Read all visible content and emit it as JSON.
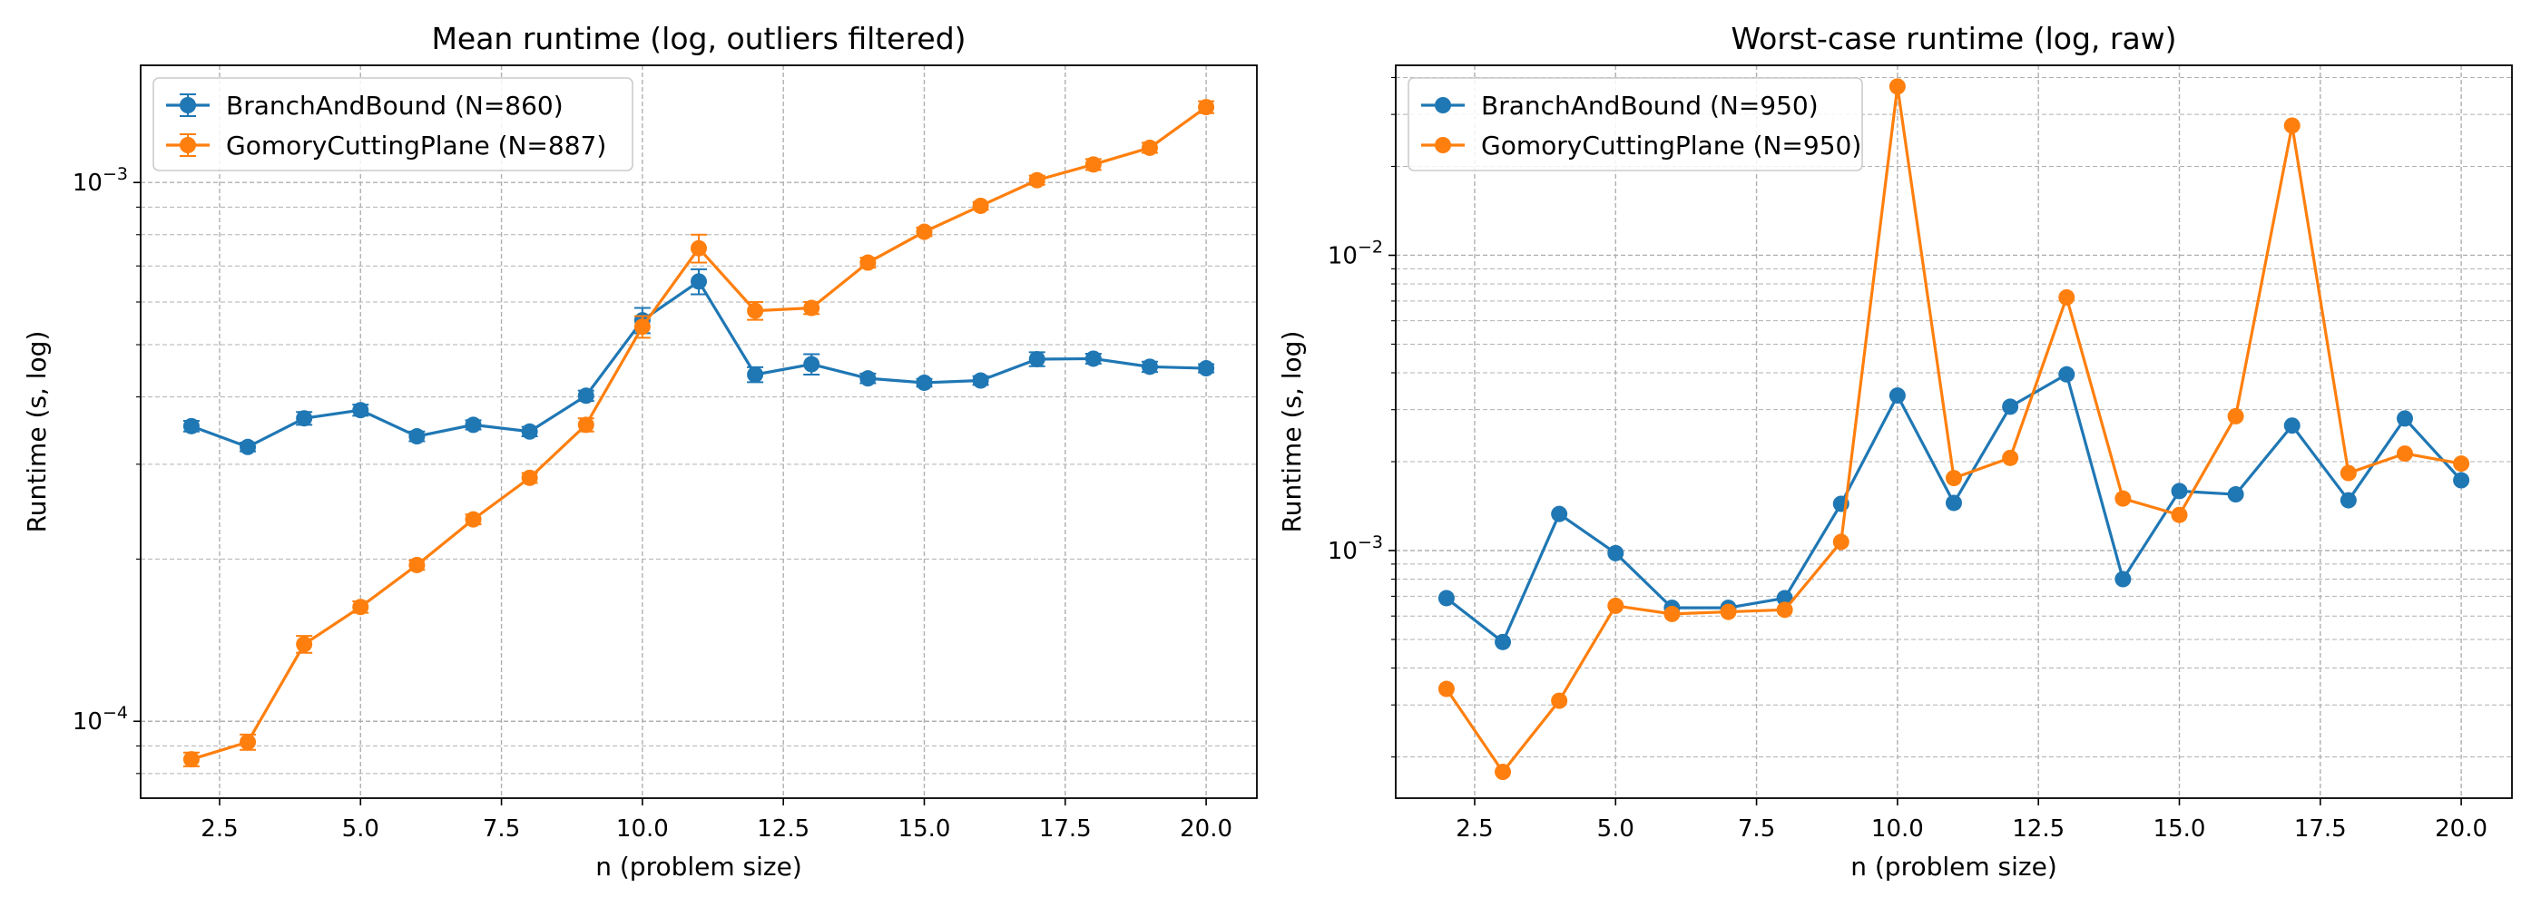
{
  "colors": {
    "series_a": "#1f77b4",
    "series_b": "#ff7f0e"
  },
  "chart_data": [
    {
      "type": "line",
      "title": "Mean runtime (log, outliers filtered)",
      "xlabel": "n (problem size)",
      "ylabel": "Runtime (s, log)",
      "xlim": [
        1.1,
        20.9
      ],
      "ylim": [
        7.2e-05,
        0.00165
      ],
      "yscale": "log",
      "xticks": [
        2.5,
        5.0,
        7.5,
        10.0,
        12.5,
        15.0,
        17.5,
        20.0
      ],
      "xtick_labels": [
        "2.5",
        "5.0",
        "7.5",
        "10.0",
        "12.5",
        "15.0",
        "17.5",
        "20.0"
      ],
      "yticks": [
        0.0001,
        0.001
      ],
      "ytick_base": [
        "10",
        "10"
      ],
      "ytick_exp": [
        "−4",
        "−3"
      ],
      "grid": true,
      "legend_position": "top-left",
      "x": [
        2,
        3,
        4,
        5,
        6,
        7,
        8,
        9,
        10,
        11,
        12,
        13,
        14,
        15,
        16,
        17,
        18,
        19,
        20
      ],
      "series": [
        {
          "name": "BranchAndBound (N=860)",
          "color": "#1f77b4",
          "error_bars": true,
          "values": [
            0.000353,
            0.000323,
            0.000365,
            0.000378,
            0.000338,
            0.000355,
            0.000345,
            0.000402,
            0.000555,
            0.000655,
            0.00044,
            0.00046,
            0.000433,
            0.000425,
            0.000429,
            0.00047,
            0.000471,
            0.000455,
            0.000452
          ],
          "errors": [
            8e-06,
            6e-06,
            1e-05,
            9e-06,
            7e-06,
            7e-06,
            7e-06,
            9e-06,
            3e-05,
            3.5e-05,
            1.4e-05,
            2e-05,
            9e-06,
            7e-06,
            8e-06,
            1.4e-05,
            1e-05,
            1e-05,
            8e-06
          ]
        },
        {
          "name": "GomoryCuttingPlane (N=887)",
          "color": "#ff7f0e",
          "error_bars": true,
          "values": [
            8.5e-05,
            9.15e-05,
            0.000139,
            0.000163,
            0.000195,
            0.000237,
            0.000283,
            0.000355,
            0.00054,
            0.000755,
            0.000578,
            0.000585,
            0.00071,
            0.00081,
            0.000905,
            0.00101,
            0.00108,
            0.00116,
            0.00138
          ],
          "errors": [
            2.5e-06,
            3e-06,
            5e-06,
            4e-06,
            4e-06,
            5e-06,
            6e-06,
            1e-05,
            2.5e-05,
            4.5e-05,
            2.2e-05,
            1.5e-05,
            1.5e-05,
            1.5e-05,
            1.5e-05,
            2e-05,
            2.5e-05,
            2.5e-05,
            3.5e-05
          ]
        }
      ]
    },
    {
      "type": "line",
      "title": "Worst-case runtime (log, raw)",
      "xlabel": "n (problem size)",
      "ylabel": "Runtime (s, log)",
      "xlim": [
        1.1,
        20.9
      ],
      "ylim": [
        0.000145,
        0.044
      ],
      "yscale": "log",
      "xticks": [
        2.5,
        5.0,
        7.5,
        10.0,
        12.5,
        15.0,
        17.5,
        20.0
      ],
      "xtick_labels": [
        "2.5",
        "5.0",
        "7.5",
        "10.0",
        "12.5",
        "15.0",
        "17.5",
        "20.0"
      ],
      "yticks": [
        0.001,
        0.01
      ],
      "ytick_base": [
        "10",
        "10"
      ],
      "ytick_exp": [
        "−3",
        "−2"
      ],
      "grid": true,
      "legend_position": "top-left",
      "x": [
        2,
        3,
        4,
        5,
        6,
        7,
        8,
        9,
        10,
        11,
        12,
        13,
        14,
        15,
        16,
        17,
        18,
        19,
        20
      ],
      "series": [
        {
          "name": "BranchAndBound (N=950)",
          "color": "#1f77b4",
          "error_bars": false,
          "values": [
            0.00069,
            0.00049,
            0.00133,
            0.00098,
            0.00064,
            0.00064,
            0.00069,
            0.00144,
            0.00335,
            0.00145,
            0.00307,
            0.00395,
            0.0008,
            0.00159,
            0.00155,
            0.00265,
            0.00148,
            0.0028,
            0.00173
          ]
        },
        {
          "name": "GomoryCuttingPlane (N=950)",
          "color": "#ff7f0e",
          "error_bars": false,
          "values": [
            0.00034,
            0.000178,
            0.00031,
            0.00065,
            0.00061,
            0.00062,
            0.00063,
            0.00107,
            0.0373,
            0.00176,
            0.00206,
            0.0072,
            0.0015,
            0.00132,
            0.00285,
            0.0275,
            0.00183,
            0.00213,
            0.00197
          ]
        }
      ]
    }
  ]
}
